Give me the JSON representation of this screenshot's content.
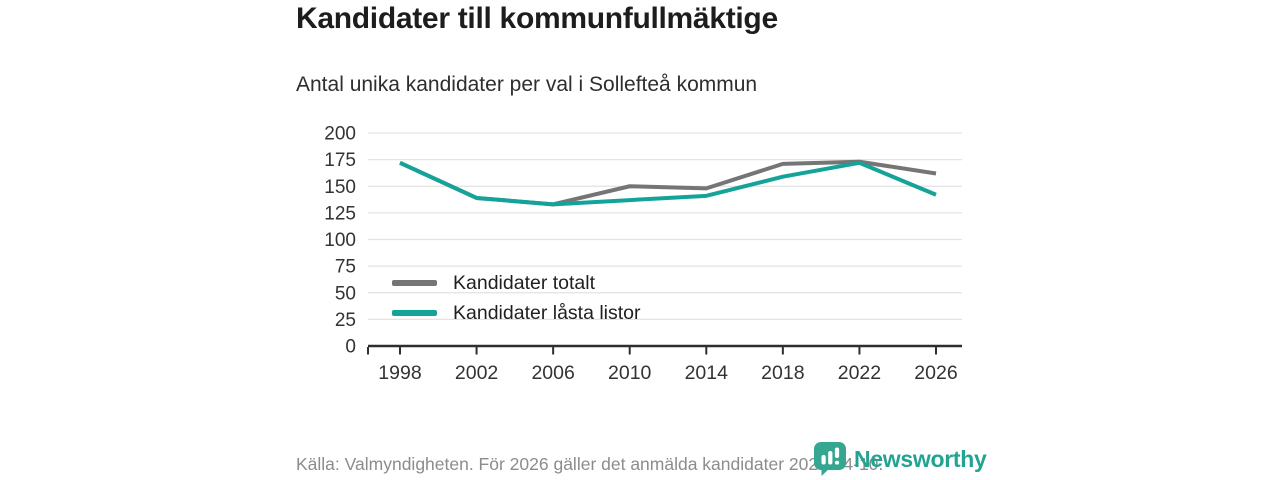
{
  "header": {
    "title": "Kandidater till kommunfullmäktige",
    "subtitle": "Antal unika kandidater per val i Sollefteå kommun"
  },
  "chart_data": {
    "type": "line",
    "categories": [
      "1998",
      "2002",
      "2006",
      "2010",
      "2014",
      "2018",
      "2022",
      "2026"
    ],
    "series": [
      {
        "name": "Kandidater totalt",
        "color": "#757575",
        "values": [
          172,
          139,
          133,
          150,
          148,
          171,
          173,
          162
        ]
      },
      {
        "name": "Kandidater låsta listor",
        "color": "#14a399",
        "values": [
          172,
          139,
          133,
          137,
          141,
          159,
          172,
          142
        ]
      }
    ],
    "title": "Kandidater till kommunfullmäktige",
    "subtitle": "Antal unika kandidater per val i Sollefteå kommun",
    "xlabel": "",
    "ylabel": "",
    "ylim": [
      0,
      200
    ],
    "y_ticks": [
      0,
      25,
      50,
      75,
      100,
      125,
      150,
      175,
      200
    ],
    "grid": "horizontal",
    "legend_position": "inside-bottom-left"
  },
  "footer": {
    "source": "Källa: Valmyndigheten. För 2026 gäller det anmälda kandidater 2026-04-10.",
    "brand": "Newsworthy"
  },
  "colors": {
    "line_gray": "#757575",
    "accent_teal": "#14a399",
    "grid": "#e3e3e3",
    "axis": "#2e2e2e",
    "tick_label": "#333333",
    "footer_text": "#8c8c8c",
    "brand_text_teal": "#23a392",
    "brand_icon_teal": "#35a791"
  }
}
